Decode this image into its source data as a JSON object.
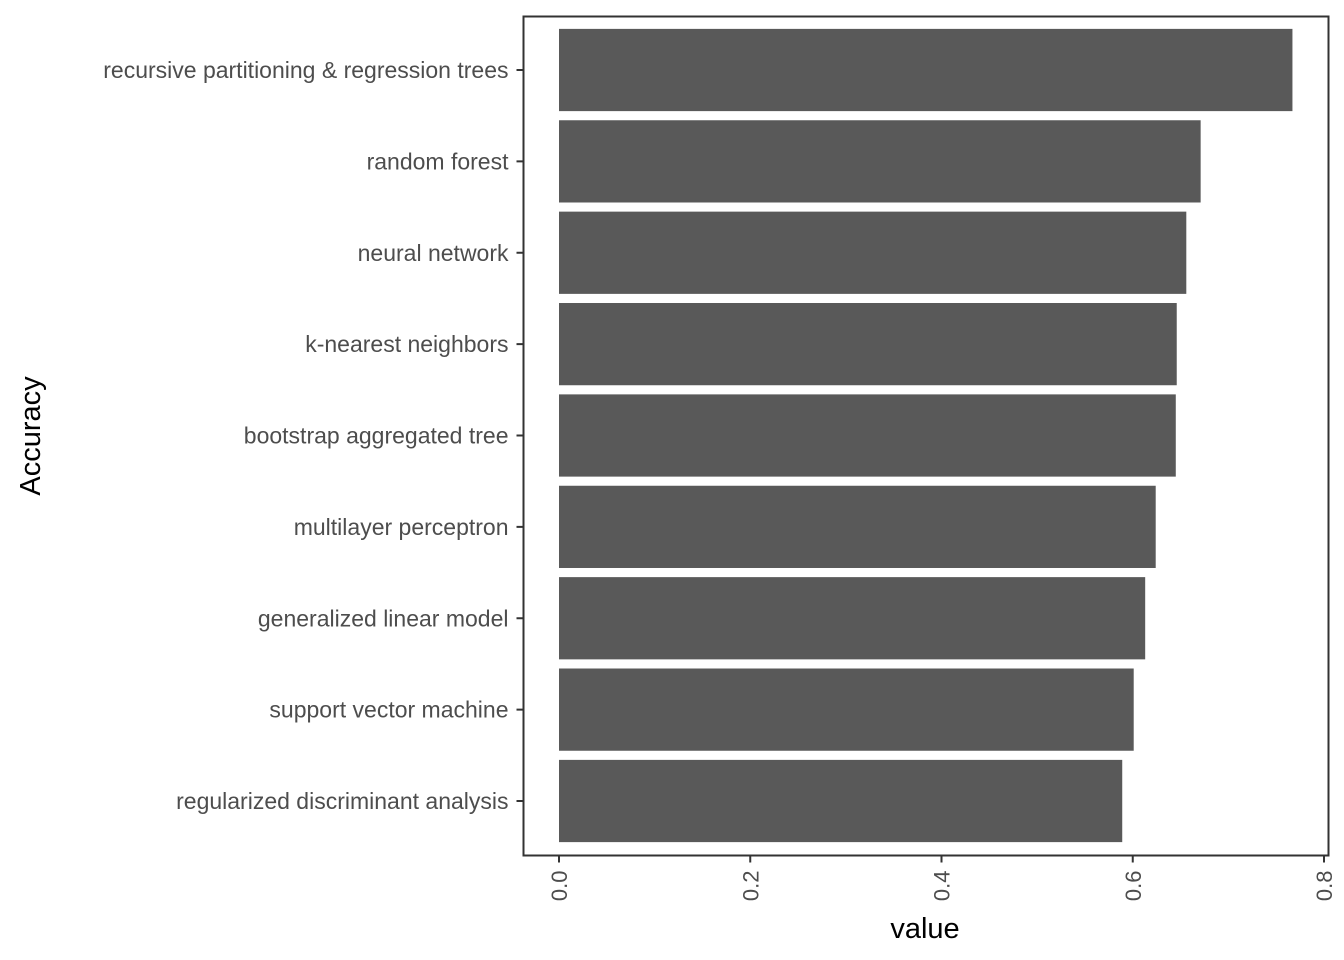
{
  "chart_data": {
    "type": "bar",
    "orientation": "horizontal",
    "categories": [
      "recursive partitioning & regression trees",
      "random forest",
      "neural network",
      "k-nearest neighbors",
      "bootstrap aggregated tree",
      "multilayer perceptron",
      "generalized linear model",
      "support vector machine",
      "regularized discriminant analysis"
    ],
    "values": [
      0.767,
      0.671,
      0.656,
      0.646,
      0.645,
      0.624,
      0.613,
      0.601,
      0.589
    ],
    "title": "",
    "xlabel": "value",
    "ylabel": "Accuracy",
    "xlim": [
      0,
      0.8
    ],
    "xticks": [
      "0.0",
      "0.2",
      "0.4",
      "0.6",
      "0.8"
    ],
    "xtick_values": [
      0,
      0.2,
      0.4,
      0.6,
      0.8
    ],
    "grid": false,
    "legend": "none",
    "colors": {
      "bar": "#595959",
      "panel_border": "#333333",
      "tick": "#333333",
      "label_text": "#4d4d4d",
      "title_text": "#000000"
    }
  }
}
